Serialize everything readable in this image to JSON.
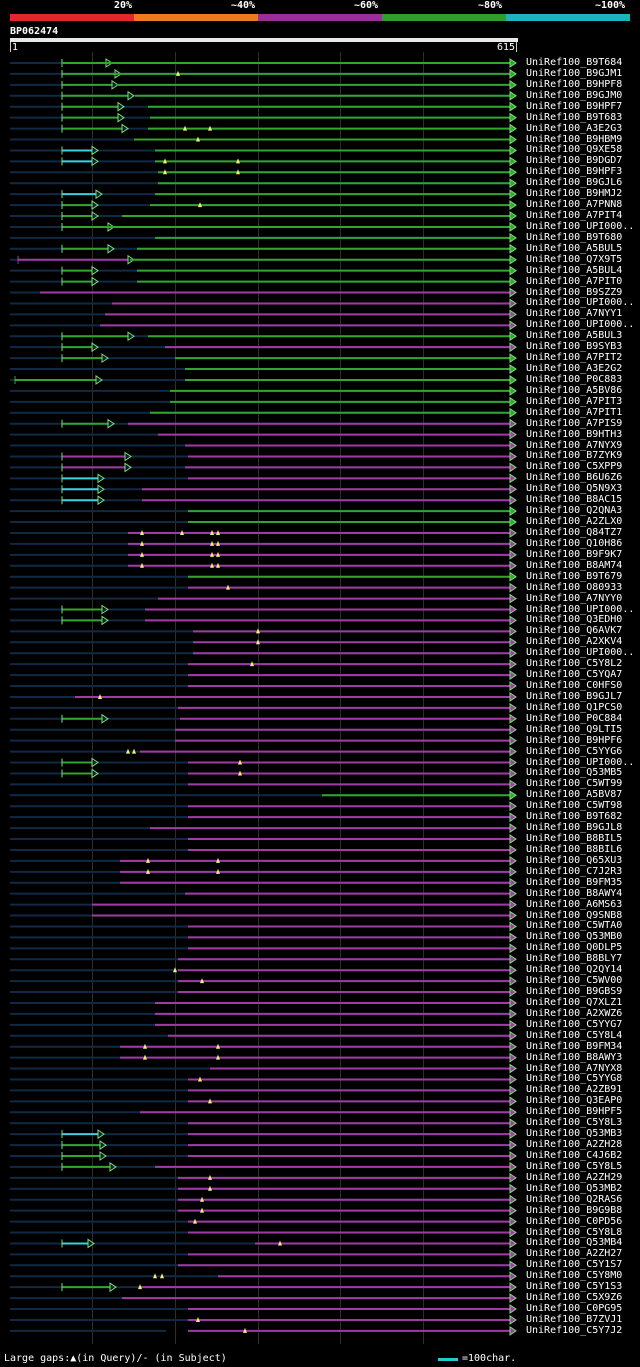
{
  "header": {
    "percent_labels": [
      "20%",
      "~40%",
      "~60%",
      "~80%",
      "~100%"
    ],
    "percent_colors": [
      "#e3262f",
      "#ef7a1e",
      "#9a2f9a",
      "#2f9e2f",
      "#1fb4bd"
    ],
    "query_id": "BP062474",
    "ruler_start": "1",
    "ruler_end": "615"
  },
  "colors": {
    "purple": "#a23aa6",
    "green": "#31a52e",
    "cyan": "#3ccfdd",
    "light_green": "#7ddc7a",
    "lowscore": "#102a46",
    "gap_marker": "#f2f27a"
  },
  "hits": [
    "UniRef100_B9T684",
    "UniRef100_B9GJM1",
    "UniRef100_B9HPF8",
    "UniRef100_B9GJM0",
    "UniRef100_B9HPF7",
    "UniRef100_B9T683",
    "UniRef100_A3E2G3",
    "UniRef100_B9HBM9",
    "UniRef100_Q9XE58",
    "UniRef100_B9DGD7",
    "UniRef100_B9HPF3",
    "UniRef100_B9GJL6",
    "UniRef100_B9HMJ2",
    "UniRef100_A7PNN8",
    "UniRef100_A7PIT4",
    "UniRef100_UPI000..",
    "UniRef100_B9T680",
    "UniRef100_A5BUL5",
    "UniRef100_Q7X9T5",
    "UniRef100_A5BUL4",
    "UniRef100_A7PIT0",
    "UniRef100_B9SZZ9",
    "UniRef100_UPI000..",
    "UniRef100_A7NYY1",
    "UniRef100_UPI000..",
    "UniRef100_A5BUL3",
    "UniRef100_B9SYB3",
    "UniRef100_A7PIT2",
    "UniRef100_A3E2G2",
    "UniRef100_P0C883",
    "UniRef100_A5BV86",
    "UniRef100_A7PIT3",
    "UniRef100_A7PIT1",
    "UniRef100_A7PIS9",
    "UniRef100_B9HTH3",
    "UniRef100_A7NYX9",
    "UniRef100_B7ZYK9",
    "UniRef100_C5XPP9",
    "UniRef100_B6U6Z6",
    "UniRef100_Q5N9X3",
    "UniRef100_B8AC15",
    "UniRef100_Q2QNA3",
    "UniRef100_A2ZLX0",
    "UniRef100_Q84TZ7",
    "UniRef100_Q10H86",
    "UniRef100_B9F9K7",
    "UniRef100_B8AM74",
    "UniRef100_B9T679",
    "UniRef100_O80933",
    "UniRef100_A7NYY0",
    "UniRef100_UPI000..",
    "UniRef100_Q3EDH0",
    "UniRef100_Q6AVK7",
    "UniRef100_A2XKV4",
    "UniRef100_UPI000..",
    "UniRef100_C5Y8L2",
    "UniRef100_C5YQA7",
    "UniRef100_C0HFS0",
    "UniRef100_B9GJL7",
    "UniRef100_Q1PCS0",
    "UniRef100_P0C884",
    "UniRef100_Q9LTI5",
    "UniRef100_B9HPF6",
    "UniRef100_C5YYG6",
    "UniRef100_UPI000..",
    "UniRef100_Q53MB5",
    "UniRef100_C5WT99",
    "UniRef100_A5BV87",
    "UniRef100_C5WT98",
    "UniRef100_B9T682",
    "UniRef100_B9GJL8",
    "UniRef100_B8BIL5",
    "UniRef100_B8BIL6",
    "UniRef100_Q65XU3",
    "UniRef100_C7J2R3",
    "UniRef100_B9FM35",
    "UniRef100_B8AWY4",
    "UniRef100_A6MS63",
    "UniRef100_Q9SNB8",
    "UniRef100_C5WTA0",
    "UniRef100_Q53MB0",
    "UniRef100_Q0DLP5",
    "UniRef100_B8BLY7",
    "UniRef100_Q2QY14",
    "UniRef100_C5WV00",
    "UniRef100_B9GBS9",
    "UniRef100_Q7XLZ1",
    "UniRef100_A2XWZ6",
    "UniRef100_C5YYG7",
    "UniRef100_C5Y8L4",
    "UniRef100_B9FM34",
    "UniRef100_B8AWY3",
    "UniRef100_A7NYX8",
    "UniRef100_C5YYG8",
    "UniRef100_A2ZB91",
    "UniRef100_Q3EAP0",
    "UniRef100_B9HPF5",
    "UniRef100_C5Y8L3",
    "UniRef100_Q53MB3",
    "UniRef100_A2ZH28",
    "UniRef100_C4J6B2",
    "UniRef100_C5Y8L5",
    "UniRef100_A2ZH29",
    "UniRef100_Q53MB2",
    "UniRef100_Q2RAS6",
    "UniRef100_B9G9B8",
    "UniRef100_C0PD56",
    "UniRef100_C5Y8L8",
    "UniRef100_Q53MB4",
    "UniRef100_A2ZH27",
    "UniRef100_C5Y1S7",
    "UniRef100_C5Y8M0",
    "UniRef100_C5Y1S3",
    "UniRef100_C5X9Z6",
    "UniRef100_C0PG95",
    "UniRef100_B7ZVJ1",
    "UniRef100_C5Y7J2"
  ],
  "footer": {
    "gaps_note": "Large gaps:▲(in Query)/- (in Subject)",
    "scale_note": "=100char."
  }
}
